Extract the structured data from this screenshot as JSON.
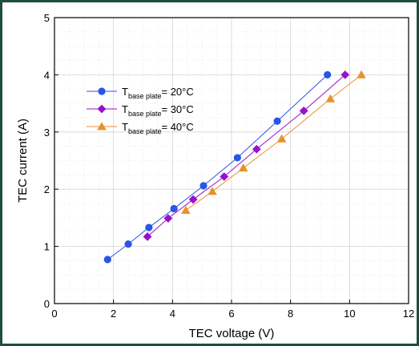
{
  "chart_data": {
    "type": "scatter",
    "xlabel": "TEC voltage (V)",
    "ylabel": "TEC current (A)",
    "xlim": [
      0,
      12
    ],
    "ylim": [
      0,
      5
    ],
    "xticks": [
      "0",
      "2",
      "4",
      "6",
      "8",
      "10",
      "12"
    ],
    "yticks": [
      "0",
      "1",
      "2",
      "3",
      "4",
      "5"
    ],
    "grid": true,
    "legend_position": "upper-left",
    "series": [
      {
        "legend_main": "T",
        "legend_sub": "base plate",
        "legend_value": "= 20°C",
        "color": "#2a55e6",
        "marker": "circle",
        "x": [
          1.8,
          2.5,
          3.2,
          4.05,
          5.05,
          6.2,
          7.55,
          9.25
        ],
        "y": [
          0.77,
          1.04,
          1.33,
          1.66,
          2.06,
          2.55,
          3.19,
          4.0
        ]
      },
      {
        "legend_main": "T",
        "legend_sub": "base plate",
        "legend_value": "= 30°C",
        "color": "#9a10c8",
        "marker": "diamond",
        "x": [
          3.15,
          3.85,
          4.7,
          5.75,
          6.85,
          8.45,
          9.85
        ],
        "y": [
          1.17,
          1.49,
          1.82,
          2.22,
          2.7,
          3.37,
          4.0
        ]
      },
      {
        "legend_main": "T",
        "legend_sub": "base plate",
        "legend_value": "= 40°C",
        "color": "#e8922c",
        "marker": "triangle",
        "x": [
          4.45,
          5.35,
          6.4,
          7.7,
          9.35,
          10.4
        ],
        "y": [
          1.63,
          1.96,
          2.37,
          2.88,
          3.58,
          4.0
        ]
      }
    ]
  },
  "colors": {
    "frame": "#1f4e3d",
    "major_grid": "#d3d3d3",
    "minor_grid": "#ececec"
  }
}
